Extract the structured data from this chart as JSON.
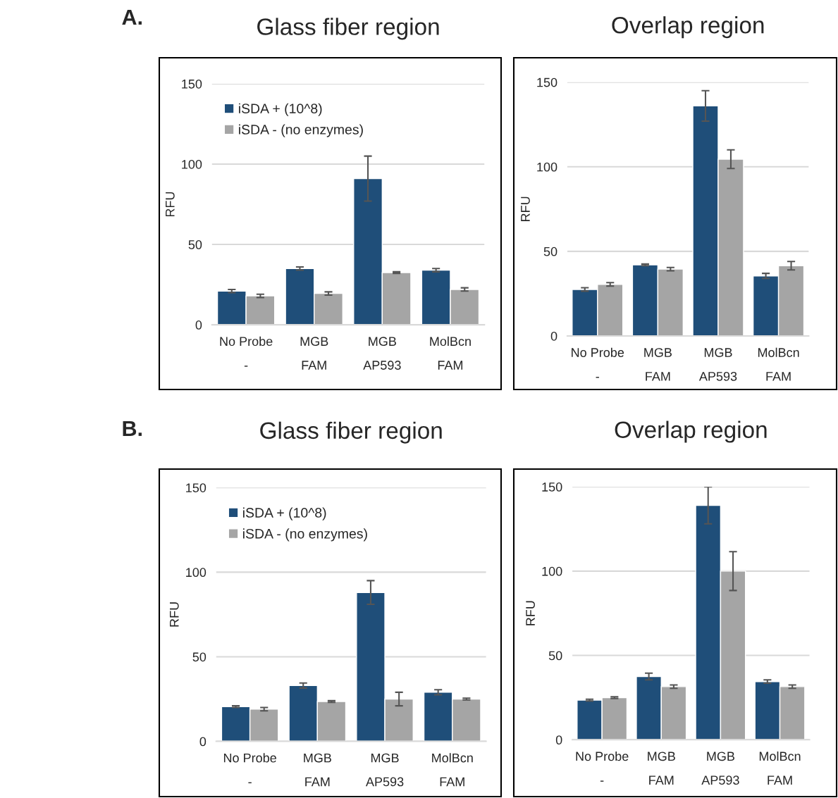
{
  "chart_data": [
    {
      "type": "bar",
      "title": "Glass fiber region",
      "ylabel": "RFU",
      "annotations": [
        "A."
      ],
      "categories": [
        "No Probe\n-",
        "MGB\nFAM",
        "MGB\nAP593",
        "MolBcn\nFAM"
      ],
      "ylim": [
        0,
        150
      ],
      "yticks": [
        0,
        50,
        100,
        150
      ],
      "grid": "y",
      "legend": "top left",
      "series": [
        {
          "name": "iSDA + (10^8)",
          "color": "#1f4e79",
          "values": [
            21,
            35,
            91,
            34
          ],
          "errors": [
            1,
            1,
            14,
            1
          ]
        },
        {
          "name": "iSDA - (no enzymes)",
          "color": "#a5a5a5",
          "values": [
            18,
            19.5,
            32.5,
            22
          ],
          "errors": [
            1,
            1,
            0.5,
            1
          ]
        }
      ]
    },
    {
      "type": "bar",
      "title": "Overlap region",
      "ylabel": "RFU",
      "categories": [
        "No Probe\n-",
        "MGB\nFAM",
        "MGB\nAP593",
        "MolBcn\nFAM"
      ],
      "ylim": [
        0,
        150
      ],
      "yticks": [
        0,
        50,
        100,
        150
      ],
      "grid": "y",
      "series": [
        {
          "color": "#1f4e79",
          "values": [
            27.5,
            42,
            136,
            35.5
          ],
          "errors": [
            1,
            0.5,
            9,
            1.5
          ]
        },
        {
          "color": "#a5a5a5",
          "values": [
            30.5,
            39.5,
            104.5,
            41.5
          ],
          "errors": [
            1,
            1,
            5.5,
            2.5
          ]
        }
      ]
    },
    {
      "type": "bar",
      "title": "Glass fiber region",
      "ylabel": "RFU",
      "annotations": [
        "B."
      ],
      "categories": [
        "No Probe\n-",
        "MGB\nFAM",
        "MGB\nAP593",
        "MolBcn\nFAM"
      ],
      "ylim": [
        0,
        150
      ],
      "yticks": [
        0,
        50,
        100,
        150
      ],
      "grid": "y",
      "legend": "top left",
      "series": [
        {
          "name": "iSDA + (10^8)",
          "color": "#1f4e79",
          "values": [
            20.5,
            33,
            88,
            29
          ],
          "errors": [
            0.5,
            1.5,
            7,
            1.5
          ]
        },
        {
          "name": "iSDA - (no enzymes)",
          "color": "#a5a5a5",
          "values": [
            19,
            23.5,
            25,
            25
          ],
          "errors": [
            1,
            0.5,
            4,
            0.5
          ]
        }
      ]
    },
    {
      "type": "bar",
      "title": "Overlap region",
      "ylabel": "RFU",
      "categories": [
        "No Probe\n-",
        "MGB\nFAM",
        "MGB\nAP593",
        "MolBcn\nFAM"
      ],
      "ylim": [
        0,
        150
      ],
      "yticks": [
        0,
        50,
        100,
        150
      ],
      "grid": "y",
      "series": [
        {
          "color": "#1f4e79",
          "values": [
            23.5,
            37.5,
            139,
            34.5
          ],
          "errors": [
            0.5,
            2,
            11,
            1
          ]
        },
        {
          "color": "#a5a5a5",
          "values": [
            25,
            31.5,
            100,
            31.5
          ],
          "errors": [
            0.5,
            1,
            11.5,
            1
          ]
        }
      ]
    }
  ]
}
